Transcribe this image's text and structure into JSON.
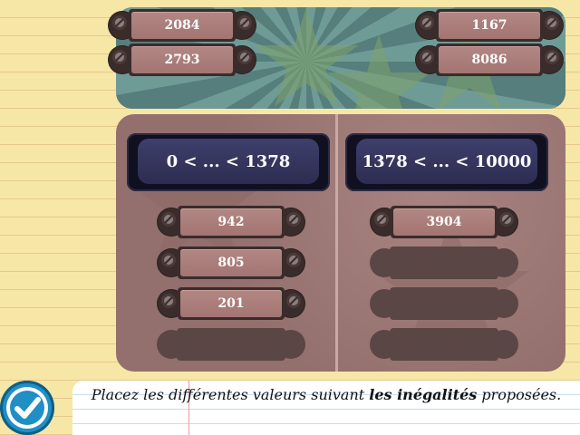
{
  "source_tiles": [
    "2084",
    "2793",
    "1167",
    "8086"
  ],
  "columns": [
    {
      "range": "0 < ... < 1378",
      "tiles": [
        "942",
        "805",
        "201"
      ],
      "empty_slots": 1
    },
    {
      "range": "1378 < ... < 10000",
      "tiles": [
        "3904"
      ],
      "empty_slots": 3
    }
  ],
  "instruction": {
    "before": "Placez les différentes valeurs suivant ",
    "bold": "les inégalités",
    "after": " proposées."
  },
  "icons": {
    "validate": "checkmark-icon"
  },
  "colors": {
    "accent": "#1f8fc4",
    "board": "#9b7370",
    "tray": "#5f8a88"
  }
}
